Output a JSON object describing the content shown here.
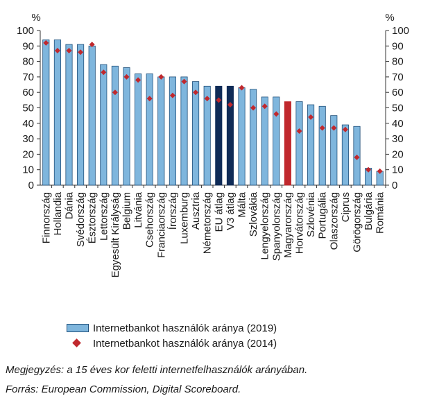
{
  "chart_data": {
    "type": "bar",
    "y_unit_left": "%",
    "y_unit_right": "%",
    "ylim": [
      0,
      100
    ],
    "yticks": [
      0,
      10,
      20,
      30,
      40,
      50,
      60,
      70,
      80,
      90,
      100
    ],
    "categories": [
      "Finnország",
      "Hollandia",
      "Dánia",
      "Svédország",
      "Észtország",
      "Lettország",
      "Egyesült Királyság",
      "Belgium",
      "Litvánia",
      "Csehország",
      "Franciaország",
      "Írország",
      "Luxemburg",
      "Ausztria",
      "Németország",
      "EU átlag",
      "V3 átlag",
      "Málta",
      "Szlovákia",
      "Lengyelország",
      "Spanyolország",
      "Magyarország",
      "Horvátország",
      "Szlovénia",
      "Portugália",
      "Olaszország",
      "Ciprus",
      "Görögország",
      "Bulgária",
      "Románia"
    ],
    "highlight": {
      "dark": [
        "EU átlag",
        "V3 átlag"
      ],
      "red": [
        "Magyarország"
      ]
    },
    "colors": {
      "bar": "#7fb6dd",
      "bar_outline": "#1f4f7a",
      "bar_dark": "#0f2b57",
      "bar_red": "#c0282d",
      "marker": "#c0282d"
    },
    "series": [
      {
        "name": "Internetbankot használók aránya (2019)",
        "kind": "bar",
        "values": [
          94,
          94,
          91,
          91,
          90,
          78,
          77,
          76,
          72,
          72,
          70,
          70,
          70,
          67,
          64,
          64,
          64,
          63,
          62,
          57,
          57,
          54,
          54,
          52,
          51,
          45,
          39,
          38,
          11,
          9
        ]
      },
      {
        "name": "Internetbankot használók aránya (2014)",
        "kind": "marker",
        "values": [
          92,
          87,
          87,
          86,
          91,
          73,
          60,
          70,
          68,
          56,
          70,
          58,
          67,
          60,
          56,
          55,
          52,
          63,
          50,
          51,
          46,
          38,
          35,
          44,
          37,
          37,
          36,
          18,
          10,
          9
        ]
      }
    ]
  },
  "notes": {
    "note": "Megjegyzés: a 15 éves kor feletti internetfelhasználók arányában.",
    "source": "Forrás: European Commission, Digital Scoreboard."
  }
}
